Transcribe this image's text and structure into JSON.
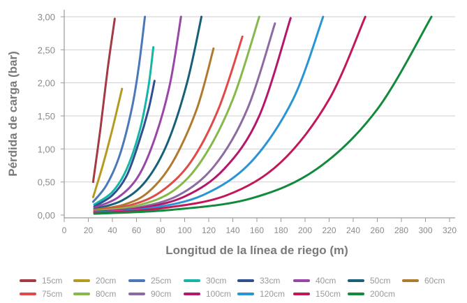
{
  "chart_data": {
    "type": "line",
    "xlabel": "Longitud de la línea de riego (m)",
    "ylabel": "Pérdida de carga (bar)",
    "xlim": [
      0,
      320
    ],
    "ylim": [
      0,
      3
    ],
    "x_ticks": [
      "0",
      "20",
      "40",
      "60",
      "80",
      "100",
      "120",
      "140",
      "160",
      "180",
      "200",
      "220",
      "240",
      "260",
      "280",
      "300",
      "320"
    ],
    "y_ticks": [
      "0,00",
      "0,50",
      "1,00",
      "1,50",
      "2,00",
      "2,50",
      "3,00"
    ],
    "grid": "horizontal",
    "legend_position": "bottom",
    "series": [
      {
        "name": "15cm",
        "color": "#a33a44",
        "x": [
          24,
          30,
          36,
          42
        ],
        "y": [
          0.5,
          1.3,
          2.2,
          2.97
        ]
      },
      {
        "name": "20cm",
        "color": "#b59a1f",
        "x": [
          24,
          32,
          40,
          48
        ],
        "y": [
          0.27,
          0.75,
          1.3,
          1.91
        ]
      },
      {
        "name": "25cm",
        "color": "#4a78b8",
        "x": [
          24,
          35,
          46,
          56,
          62,
          67
        ],
        "y": [
          0.2,
          0.45,
          0.9,
          1.6,
          2.25,
          3.0
        ]
      },
      {
        "name": "30cm",
        "color": "#17b5a8",
        "x": [
          25,
          40,
          52,
          63,
          70,
          74
        ],
        "y": [
          0.16,
          0.35,
          0.7,
          1.3,
          1.95,
          2.54
        ]
      },
      {
        "name": "33cm",
        "color": "#2f4f8f",
        "x": [
          25,
          40,
          52,
          62,
          70,
          75
        ],
        "y": [
          0.13,
          0.3,
          0.6,
          1.1,
          1.6,
          2.03
        ]
      },
      {
        "name": "40cm",
        "color": "#9a45a8",
        "x": [
          25,
          45,
          62,
          76,
          88,
          97
        ],
        "y": [
          0.11,
          0.27,
          0.6,
          1.2,
          2.0,
          3.0
        ]
      },
      {
        "name": "50cm",
        "color": "#17607a",
        "x": [
          25,
          48,
          68,
          86,
          102,
          114
        ],
        "y": [
          0.09,
          0.22,
          0.52,
          1.1,
          2.0,
          3.0
        ]
      },
      {
        "name": "60cm",
        "color": "#b07a2e",
        "x": [
          25,
          50,
          70,
          90,
          110,
          124
        ],
        "y": [
          0.08,
          0.16,
          0.35,
          0.8,
          1.6,
          2.52
        ]
      },
      {
        "name": "75cm",
        "color": "#e04a4a",
        "x": [
          25,
          55,
          80,
          105,
          128,
          148
        ],
        "y": [
          0.07,
          0.15,
          0.35,
          0.8,
          1.6,
          2.7
        ]
      },
      {
        "name": "80cm",
        "color": "#86b84a",
        "x": [
          25,
          60,
          90,
          115,
          140,
          162
        ],
        "y": [
          0.06,
          0.14,
          0.36,
          0.85,
          1.75,
          3.0
        ]
      },
      {
        "name": "90cm",
        "color": "#8c6ca0",
        "x": [
          25,
          60,
          95,
          125,
          152,
          175
        ],
        "y": [
          0.05,
          0.11,
          0.3,
          0.75,
          1.6,
          2.9
        ]
      },
      {
        "name": "100cm",
        "color": "#b5176a",
        "x": [
          25,
          62,
          100,
          133,
          162,
          188
        ],
        "y": [
          0.05,
          0.1,
          0.28,
          0.7,
          1.5,
          2.98
        ]
      },
      {
        "name": "120cm",
        "color": "#2a95d5",
        "x": [
          25,
          70,
          115,
          155,
          190,
          215
        ],
        "y": [
          0.04,
          0.1,
          0.3,
          0.8,
          1.75,
          3.0
        ]
      },
      {
        "name": "150cm",
        "color": "#c2185b",
        "x": [
          25,
          80,
          135,
          180,
          220,
          250
        ],
        "y": [
          0.03,
          0.1,
          0.3,
          0.8,
          1.75,
          3.0
        ]
      },
      {
        "name": "200cm",
        "color": "#128a3c",
        "x": [
          25,
          90,
          155,
          210,
          260,
          305
        ],
        "y": [
          0.02,
          0.08,
          0.25,
          0.7,
          1.6,
          3.0
        ]
      }
    ]
  }
}
